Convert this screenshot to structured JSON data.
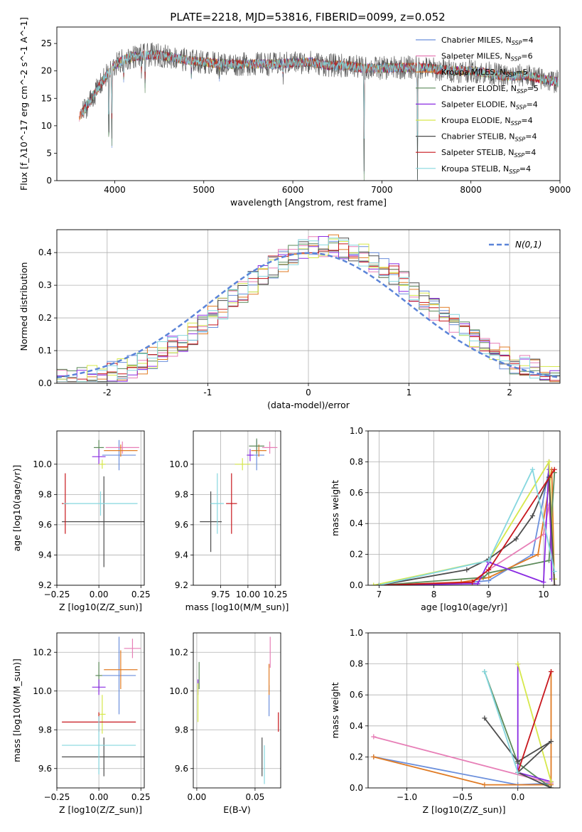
{
  "figure": {
    "title": "PLATE=2218, MJD=53816, FIBERID=0099, z=0.052"
  },
  "colors": {
    "Chabrier MILES": "#6b8fdc",
    "Salpeter MILES": "#e77fb7",
    "Kroupa MILES": "#e07b24",
    "Chabrier ELODIE": "#5c8a5a",
    "Salpeter ELODIE": "#8a2be2",
    "Kroupa ELODIE": "#d6e84b",
    "Chabrier STELIB": "#4d4d4d",
    "Salpeter STELIB": "#c8171d",
    "Kroupa STELIB": "#86d7df"
  },
  "models": [
    "Chabrier MILES",
    "Salpeter MILES",
    "Kroupa MILES",
    "Chabrier ELODIE",
    "Salpeter ELODIE",
    "Kroupa ELODIE",
    "Chabrier STELIB",
    "Salpeter STELIB",
    "Kroupa STELIB"
  ],
  "chart_data": [
    {
      "id": "spectrum",
      "type": "line",
      "xlabel": "wavelength [Angstrom, rest frame]",
      "ylabel": "Flux [f_λ10^-17 erg cm^-2 s^-1 A^-1]",
      "xlim": [
        3350,
        9000
      ],
      "ylim": [
        0,
        28
      ],
      "xticks": [
        4000,
        5000,
        6000,
        7000,
        8000,
        9000
      ],
      "yticks": [
        0,
        5,
        10,
        15,
        20,
        25
      ],
      "legend_position": "upper right",
      "legend": [
        {
          "model": "Chabrier MILES",
          "label": "Chabrier MILES, N",
          "sub": "SSP",
          "tail": "=4"
        },
        {
          "model": "Salpeter MILES",
          "label": "Salpeter MILES, N",
          "sub": "SSP",
          "tail": "=6"
        },
        {
          "model": "Kroupa MILES",
          "label": "Kroupa MILES, N",
          "sub": "SSP",
          "tail": "=5"
        },
        {
          "model": "Chabrier ELODIE",
          "label": "Chabrier ELODIE, N",
          "sub": "SSP",
          "tail": "=5"
        },
        {
          "model": "Salpeter ELODIE",
          "label": "Salpeter ELODIE, N",
          "sub": "SSP",
          "tail": "=4"
        },
        {
          "model": "Kroupa ELODIE",
          "label": "Kroupa ELODIE, N",
          "sub": "SSP",
          "tail": "=4"
        },
        {
          "model": "Chabrier STELIB",
          "label": "Chabrier STELIB, N",
          "sub": "SSP",
          "tail": "=4"
        },
        {
          "model": "Salpeter STELIB",
          "label": "Salpeter STELIB, N",
          "sub": "SSP",
          "tail": "=4"
        },
        {
          "model": "Kroupa STELIB",
          "label": "Kroupa STELIB, N",
          "sub": "SSP",
          "tail": "=4"
        }
      ],
      "continuum": {
        "x": [
          3600,
          3700,
          3800,
          3900,
          4000,
          4100,
          4200,
          4300,
          4400,
          4500,
          4600,
          4800,
          5000,
          5200,
          5400,
          5600,
          5800,
          6000,
          6200,
          6400,
          6600,
          6800,
          7000,
          7200,
          7400,
          7600,
          7800,
          8000,
          8200,
          8400,
          8600,
          8800,
          8980
        ],
        "y": [
          11.5,
          14.0,
          16.5,
          19.0,
          21.0,
          22.0,
          22.6,
          22.8,
          22.9,
          22.9,
          22.6,
          22.0,
          21.6,
          21.3,
          21.2,
          21.3,
          21.2,
          21.5,
          21.6,
          21.0,
          21.0,
          20.5,
          20.5,
          20.6,
          20.7,
          20.3,
          20.0,
          20.0,
          19.6,
          19.0,
          19.2,
          18.5,
          18.0
        ]
      },
      "absorption_features": [
        {
          "x": 3934,
          "depth": 17.0
        },
        {
          "x": 3968,
          "depth": 14.0
        },
        {
          "x": 4101,
          "depth": 5.0
        },
        {
          "x": 4300,
          "depth": 4.0
        },
        {
          "x": 4340,
          "depth": 6.0
        },
        {
          "x": 4861,
          "depth": 3.0
        },
        {
          "x": 5175,
          "depth": 3.0
        },
        {
          "x": 5890,
          "depth": 3.0
        },
        {
          "x": 6800,
          "depth": 20.0
        },
        {
          "x": 7400,
          "depth": 20.0
        }
      ]
    },
    {
      "id": "residual-hist",
      "type": "line",
      "xlabel": "(data-model)/error",
      "ylabel": "Normed distribution",
      "xlim": [
        -2.5,
        2.5
      ],
      "ylim": [
        0,
        0.47
      ],
      "xticks": [
        -2,
        -1,
        0,
        1,
        2
      ],
      "yticks": [
        0.0,
        0.1,
        0.2,
        0.3,
        0.4
      ],
      "legend_position": "upper right",
      "reference_curve": {
        "label": "N(0,1)",
        "mean": 0,
        "sigma": 1
      },
      "bin_width": 0.1,
      "profile": {
        "mean": 0.2,
        "sigma": 0.95,
        "peak": 0.42
      }
    },
    {
      "id": "age-vs-Z",
      "type": "scatter",
      "xlabel": "Z [log10(Z/Z_sun)]",
      "ylabel": "age [log10(age/yr)]",
      "xlim": [
        -0.25,
        0.27
      ],
      "ylim": [
        9.2,
        10.22
      ],
      "xticks": [
        -0.25,
        0.0,
        0.25
      ],
      "yticks": [
        9.2,
        9.4,
        9.6,
        9.8,
        10.0
      ],
      "points": [
        {
          "model": "Chabrier MILES",
          "x": 0.12,
          "xerr": 0.1,
          "y": 10.06,
          "yerr": 0.1
        },
        {
          "model": "Salpeter MILES",
          "x": 0.14,
          "xerr": 0.1,
          "y": 10.11,
          "yerr": 0.04
        },
        {
          "model": "Kroupa MILES",
          "x": 0.13,
          "xerr": 0.1,
          "y": 10.09,
          "yerr": 0.04
        },
        {
          "model": "Chabrier ELODIE",
          "x": 0.0,
          "xerr": 0.03,
          "y": 10.11,
          "yerr": 0.05
        },
        {
          "model": "Salpeter ELODIE",
          "x": 0.0,
          "xerr": 0.04,
          "y": 10.05,
          "yerr": 0.05
        },
        {
          "model": "Kroupa ELODIE",
          "x": 0.02,
          "xerr": 0.02,
          "y": 10.0,
          "yerr": 0.03
        },
        {
          "model": "Chabrier STELIB",
          "x": 0.03,
          "xerr": 0.25,
          "y": 9.62,
          "yerr": 0.3
        },
        {
          "model": "Salpeter STELIB",
          "x": -0.2,
          "xerr": 0.02,
          "y": 9.74,
          "yerr": 0.2
        },
        {
          "model": "Kroupa STELIB",
          "x": 0.01,
          "xerr": 0.22,
          "y": 9.74,
          "yerr": 0.08
        }
      ]
    },
    {
      "id": "age-vs-mass",
      "type": "scatter",
      "xlabel": "mass [log10(M/M_sun)]",
      "ylabel": "",
      "xlim": [
        9.5,
        10.3
      ],
      "ylim": [
        9.2,
        10.22
      ],
      "xticks": [
        9.75,
        10.0,
        10.25
      ],
      "yticks": [
        9.2,
        9.4,
        9.6,
        9.8,
        10.0
      ],
      "points": [
        {
          "model": "Chabrier MILES",
          "x": 10.08,
          "xerr": 0.07,
          "y": 10.06,
          "yerr": 0.1
        },
        {
          "model": "Salpeter MILES",
          "x": 10.2,
          "xerr": 0.07,
          "y": 10.11,
          "yerr": 0.04
        },
        {
          "model": "Kroupa MILES",
          "x": 10.1,
          "xerr": 0.07,
          "y": 10.09,
          "yerr": 0.04
        },
        {
          "model": "Chabrier ELODIE",
          "x": 10.08,
          "xerr": 0.07,
          "y": 10.12,
          "yerr": 0.05
        },
        {
          "model": "Salpeter ELODIE",
          "x": 10.02,
          "xerr": 0.03,
          "y": 10.06,
          "yerr": 0.04
        },
        {
          "model": "Kroupa ELODIE",
          "x": 9.95,
          "xerr": 0.07,
          "y": 10.0,
          "yerr": 0.04
        },
        {
          "model": "Chabrier STELIB",
          "x": 9.66,
          "xerr": 0.1,
          "y": 9.62,
          "yerr": 0.2
        },
        {
          "model": "Salpeter STELIB",
          "x": 9.85,
          "xerr": 0.05,
          "y": 9.74,
          "yerr": 0.2
        },
        {
          "model": "Kroupa STELIB",
          "x": 9.72,
          "xerr": 0.06,
          "y": 9.74,
          "yerr": 0.2
        }
      ]
    },
    {
      "id": "massweight-vs-age",
      "type": "line",
      "xlabel": "age [log10(age/yr)]",
      "ylabel": "mass weight",
      "xlim": [
        6.8,
        10.3
      ],
      "ylim": [
        0,
        1.0
      ],
      "xticks": [
        7,
        8,
        9,
        10
      ],
      "yticks": [
        0.0,
        0.2,
        0.4,
        0.6,
        0.8,
        1.0
      ],
      "series": [
        {
          "model": "Chabrier MILES",
          "x": [
            7.0,
            8.7,
            9.0,
            9.8,
            10.1,
            10.2
          ],
          "y": [
            0.0,
            0.02,
            0.03,
            0.2,
            0.75,
            0.0
          ]
        },
        {
          "model": "Salpeter MILES",
          "x": [
            7.0,
            8.7,
            9.0,
            10.0,
            10.1,
            10.2
          ],
          "y": [
            0.0,
            0.02,
            0.1,
            0.33,
            0.52,
            0.0
          ]
        },
        {
          "model": "Kroupa MILES",
          "x": [
            7.0,
            8.5,
            9.0,
            9.9,
            10.15,
            10.2
          ],
          "y": [
            0.0,
            0.02,
            0.05,
            0.2,
            0.75,
            0.0
          ]
        },
        {
          "model": "Chabrier ELODIE",
          "x": [
            7.0,
            8.9,
            9.0,
            10.1,
            10.2
          ],
          "y": [
            0.0,
            0.05,
            0.08,
            0.16,
            0.73
          ]
        },
        {
          "model": "Salpeter ELODIE",
          "x": [
            7.0,
            8.8,
            9.0,
            10.0,
            10.1,
            10.15
          ],
          "y": [
            0.0,
            0.01,
            0.15,
            0.02,
            0.8,
            0.04
          ]
        },
        {
          "model": "Kroupa ELODIE",
          "x": [
            6.9,
            9.0,
            10.1,
            10.2
          ],
          "y": [
            0.0,
            0.16,
            0.8,
            0.04
          ]
        },
        {
          "model": "Chabrier STELIB",
          "x": [
            7.0,
            8.6,
            9.0,
            9.5,
            9.8,
            10.1,
            10.2
          ],
          "y": [
            0.0,
            0.1,
            0.17,
            0.3,
            0.45,
            0.7,
            0.0
          ]
        },
        {
          "model": "Salpeter STELIB",
          "x": [
            7.0,
            8.7,
            9.0,
            10.2
          ],
          "y": [
            0.0,
            0.02,
            0.1,
            0.75
          ]
        },
        {
          "model": "Kroupa STELIB",
          "x": [
            7.0,
            9.0,
            9.8,
            10.2
          ],
          "y": [
            0.0,
            0.16,
            0.75,
            0.09
          ]
        }
      ]
    },
    {
      "id": "mass-vs-Z",
      "type": "scatter",
      "xlabel": "Z [log10(Z/Z_sun)]",
      "ylabel": "mass [log10(M/M_sun)]",
      "xlim": [
        -0.25,
        0.27
      ],
      "ylim": [
        9.5,
        10.3
      ],
      "xticks": [
        -0.25,
        0.0,
        0.25
      ],
      "yticks": [
        9.6,
        9.8,
        10.0,
        10.2
      ],
      "points": [
        {
          "model": "Chabrier MILES",
          "x": 0.12,
          "xerr": 0.1,
          "y": 10.08,
          "yerr": 0.2
        },
        {
          "model": "Salpeter MILES",
          "x": 0.2,
          "xerr": 0.05,
          "y": 10.22,
          "yerr": 0.05
        },
        {
          "model": "Kroupa MILES",
          "x": 0.13,
          "xerr": 0.1,
          "y": 10.11,
          "yerr": 0.1
        },
        {
          "model": "Chabrier ELODIE",
          "x": 0.0,
          "xerr": 0.02,
          "y": 10.08,
          "yerr": 0.07
        },
        {
          "model": "Salpeter ELODIE",
          "x": 0.0,
          "xerr": 0.04,
          "y": 10.02,
          "yerr": 0.04
        },
        {
          "model": "Kroupa ELODIE",
          "x": 0.02,
          "xerr": 0.02,
          "y": 9.88,
          "yerr": 0.1
        },
        {
          "model": "Chabrier STELIB",
          "x": 0.03,
          "xerr": 0.25,
          "y": 9.66,
          "yerr": 0.1
        },
        {
          "model": "Salpeter STELIB",
          "x": 0.0,
          "xerr": 0.22,
          "y": 9.84,
          "yerr": 0.05
        },
        {
          "model": "Kroupa STELIB",
          "x": 0.0,
          "xerr": 0.22,
          "y": 9.72,
          "yerr": 0.15
        }
      ]
    },
    {
      "id": "mass-vs-ebv",
      "type": "scatter",
      "xlabel": "E(B-V)",
      "ylabel": "",
      "xlim": [
        -0.003,
        0.072
      ],
      "ylim": [
        9.5,
        10.3
      ],
      "xticks": [
        0.0,
        0.05
      ],
      "yticks": [
        9.6,
        9.8,
        10.0,
        10.2
      ],
      "points": [
        {
          "model": "Chabrier MILES",
          "x": 0.062,
          "yerr": 0.08,
          "y": 9.95
        },
        {
          "model": "Salpeter MILES",
          "x": 0.063,
          "yerr": 0.08,
          "y": 10.2
        },
        {
          "model": "Kroupa MILES",
          "x": 0.062,
          "yerr": 0.08,
          "y": 10.06
        },
        {
          "model": "Chabrier ELODIE",
          "x": 0.002,
          "yerr": 0.07,
          "y": 10.08
        },
        {
          "model": "Salpeter ELODIE",
          "x": 0.001,
          "yerr": 0.04,
          "y": 10.02
        },
        {
          "model": "Kroupa ELODIE",
          "x": 0.001,
          "yerr": 0.1,
          "y": 9.94
        },
        {
          "model": "Chabrier STELIB",
          "x": 0.056,
          "yerr": 0.1,
          "y": 9.66
        },
        {
          "model": "Salpeter STELIB",
          "x": 0.07,
          "yerr": 0.05,
          "y": 9.84
        },
        {
          "model": "Kroupa STELIB",
          "x": 0.058,
          "yerr": 0.1,
          "y": 9.62
        }
      ]
    },
    {
      "id": "massweight-vs-Z",
      "type": "line",
      "xlabel": "Z [log10(Z/Z_sun)]",
      "ylabel": "mass weight",
      "xlim": [
        -1.35,
        0.38
      ],
      "ylim": [
        0,
        1.0
      ],
      "xticks": [
        -1.0,
        -0.5,
        0.0
      ],
      "yticks": [
        0.0,
        0.2,
        0.4,
        0.6,
        0.8,
        1.0
      ],
      "series": [
        {
          "model": "Chabrier MILES",
          "x": [
            -1.3,
            0.0,
            0.3
          ],
          "y": [
            0.2,
            0.02,
            0.03
          ]
        },
        {
          "model": "Salpeter MILES",
          "x": [
            -1.3,
            0.3
          ],
          "y": [
            0.33,
            0.03
          ]
        },
        {
          "model": "Kroupa MILES",
          "x": [
            -1.3,
            -0.3,
            0.3,
            0.3
          ],
          "y": [
            0.2,
            0.02,
            0.02,
            0.75
          ]
        },
        {
          "model": "Chabrier ELODIE",
          "x": [
            -0.3,
            0.0,
            0.3
          ],
          "y": [
            0.75,
            0.16,
            0.0
          ]
        },
        {
          "model": "Salpeter ELODIE",
          "x": [
            0.0,
            0.0,
            0.3
          ],
          "y": [
            0.8,
            0.1,
            0.04
          ]
        },
        {
          "model": "Kroupa ELODIE",
          "x": [
            0.0,
            0.3
          ],
          "y": [
            0.8,
            0.04
          ]
        },
        {
          "model": "Chabrier STELIB",
          "x": [
            -0.3,
            0.0,
            0.3,
            0.0,
            0.3
          ],
          "y": [
            0.45,
            0.17,
            0.3,
            0.1,
            0.0
          ]
        },
        {
          "model": "Salpeter STELIB",
          "x": [
            0.0,
            0.3
          ],
          "y": [
            0.1,
            0.75
          ]
        },
        {
          "model": "Kroupa STELIB",
          "x": [
            -0.3,
            0.0
          ],
          "y": [
            0.75,
            0.1
          ]
        }
      ]
    }
  ]
}
